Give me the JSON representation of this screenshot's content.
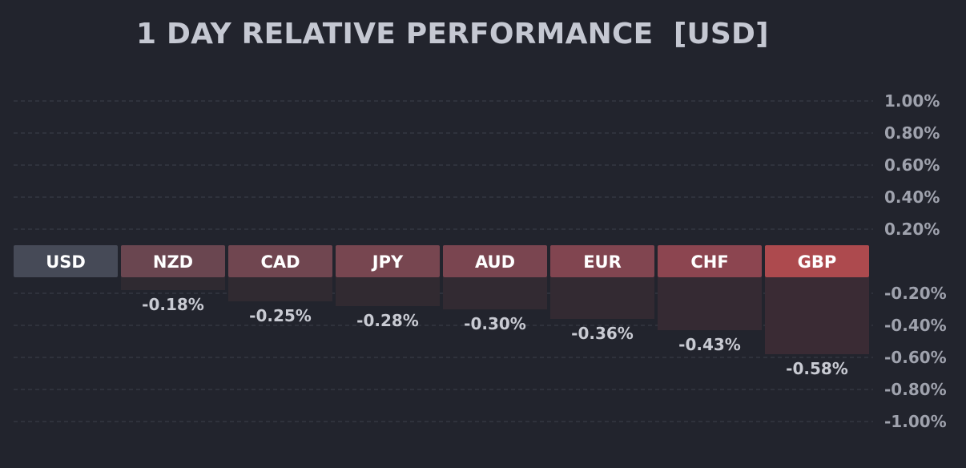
{
  "chart_data": {
    "type": "bar",
    "title": "1 DAY RELATIVE PERFORMANCE  [USD]",
    "categories": [
      "USD",
      "NZD",
      "CAD",
      "JPY",
      "AUD",
      "EUR",
      "CHF",
      "GBP"
    ],
    "values": [
      0,
      -0.18,
      -0.25,
      -0.28,
      -0.3,
      -0.36,
      -0.43,
      -0.58
    ],
    "value_labels": [
      "",
      "-0.18%",
      "-0.25%",
      "-0.28%",
      "-0.30%",
      "-0.36%",
      "-0.43%",
      "-0.58%"
    ],
    "ylim": [
      -1.0,
      1.0
    ],
    "y_ticks": [
      1.0,
      0.8,
      0.6,
      0.4,
      0.2,
      -0.2,
      -0.4,
      -0.6,
      -0.8,
      -1.0
    ],
    "y_tick_labels": [
      "1.00%",
      "0.80%",
      "0.60%",
      "0.40%",
      "0.20%",
      "-0.20%",
      "-0.40%",
      "-0.60%",
      "-0.80%",
      "-1.00%"
    ],
    "header_colors": [
      "#464a57",
      "#6a4650",
      "#704650",
      "#774650",
      "#7a4550",
      "#814550",
      "#8c4550",
      "#ad4a4e"
    ],
    "bar_colors": [
      "#26252d",
      "#2f2a31",
      "#302a31",
      "#312a31",
      "#322a32",
      "#332a32",
      "#352a33",
      "#3a2b34"
    ],
    "grid": true,
    "xlabel": "",
    "ylabel": ""
  }
}
